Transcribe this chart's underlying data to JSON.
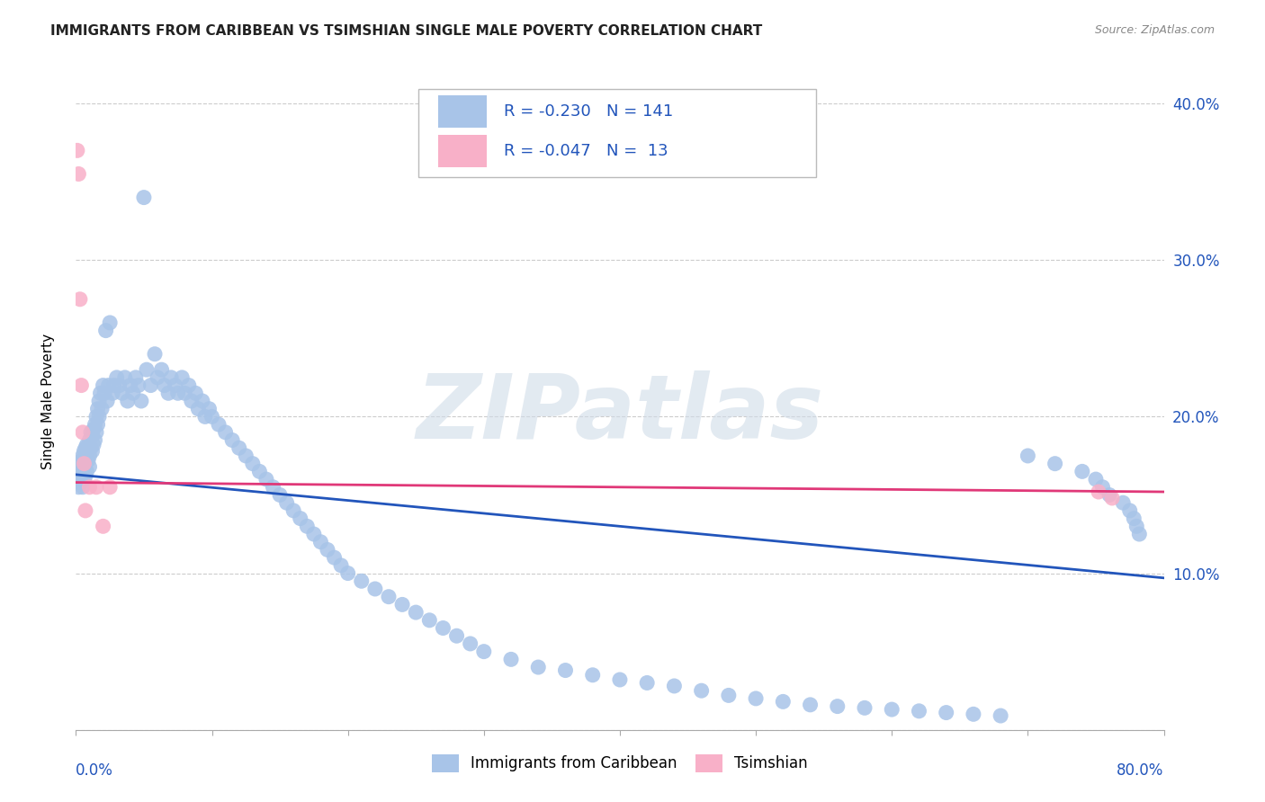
{
  "title": "IMMIGRANTS FROM CARIBBEAN VS TSIMSHIAN SINGLE MALE POVERTY CORRELATION CHART",
  "source": "Source: ZipAtlas.com",
  "ylabel": "Single Male Poverty",
  "blue_R": -0.23,
  "blue_N": 141,
  "pink_R": -0.047,
  "pink_N": 13,
  "blue_color": "#a8c4e8",
  "blue_line_color": "#2255bb",
  "pink_color": "#f8b0c8",
  "pink_line_color": "#e03878",
  "legend_label_blue": "Immigrants from Caribbean",
  "legend_label_pink": "Tsimshian",
  "watermark": "ZIPatlas",
  "xlim": [
    0.0,
    0.8
  ],
  "ylim": [
    0.0,
    0.42
  ],
  "yticks": [
    0.0,
    0.1,
    0.2,
    0.3,
    0.4
  ],
  "ytick_labels": [
    "",
    "10.0%",
    "20.0%",
    "30.0%",
    "40.0%"
  ],
  "blue_x": [
    0.001,
    0.002,
    0.002,
    0.003,
    0.003,
    0.003,
    0.004,
    0.004,
    0.004,
    0.005,
    0.005,
    0.005,
    0.006,
    0.006,
    0.006,
    0.007,
    0.007,
    0.007,
    0.008,
    0.008,
    0.008,
    0.009,
    0.009,
    0.01,
    0.01,
    0.01,
    0.011,
    0.011,
    0.012,
    0.012,
    0.013,
    0.013,
    0.014,
    0.014,
    0.015,
    0.015,
    0.016,
    0.016,
    0.017,
    0.017,
    0.018,
    0.019,
    0.02,
    0.021,
    0.022,
    0.023,
    0.024,
    0.025,
    0.027,
    0.028,
    0.03,
    0.032,
    0.034,
    0.036,
    0.038,
    0.04,
    0.042,
    0.044,
    0.046,
    0.048,
    0.05,
    0.052,
    0.055,
    0.058,
    0.06,
    0.063,
    0.065,
    0.068,
    0.07,
    0.073,
    0.075,
    0.078,
    0.08,
    0.083,
    0.085,
    0.088,
    0.09,
    0.093,
    0.095,
    0.098,
    0.1,
    0.105,
    0.11,
    0.115,
    0.12,
    0.125,
    0.13,
    0.135,
    0.14,
    0.145,
    0.15,
    0.155,
    0.16,
    0.165,
    0.17,
    0.175,
    0.18,
    0.185,
    0.19,
    0.195,
    0.2,
    0.21,
    0.22,
    0.23,
    0.24,
    0.25,
    0.26,
    0.27,
    0.28,
    0.29,
    0.3,
    0.32,
    0.34,
    0.36,
    0.38,
    0.4,
    0.42,
    0.44,
    0.46,
    0.48,
    0.5,
    0.52,
    0.54,
    0.56,
    0.58,
    0.6,
    0.62,
    0.64,
    0.66,
    0.68,
    0.7,
    0.72,
    0.74,
    0.75,
    0.755,
    0.76,
    0.77,
    0.775,
    0.778,
    0.78,
    0.782
  ],
  "blue_y": [
    0.165,
    0.17,
    0.155,
    0.168,
    0.16,
    0.158,
    0.172,
    0.162,
    0.158,
    0.175,
    0.165,
    0.155,
    0.178,
    0.168,
    0.16,
    0.18,
    0.172,
    0.162,
    0.182,
    0.175,
    0.165,
    0.18,
    0.172,
    0.185,
    0.175,
    0.168,
    0.19,
    0.18,
    0.188,
    0.178,
    0.192,
    0.182,
    0.195,
    0.185,
    0.2,
    0.19,
    0.205,
    0.195,
    0.21,
    0.2,
    0.215,
    0.205,
    0.22,
    0.215,
    0.255,
    0.21,
    0.22,
    0.26,
    0.215,
    0.22,
    0.225,
    0.22,
    0.215,
    0.225,
    0.21,
    0.22,
    0.215,
    0.225,
    0.22,
    0.21,
    0.34,
    0.23,
    0.22,
    0.24,
    0.225,
    0.23,
    0.22,
    0.215,
    0.225,
    0.22,
    0.215,
    0.225,
    0.215,
    0.22,
    0.21,
    0.215,
    0.205,
    0.21,
    0.2,
    0.205,
    0.2,
    0.195,
    0.19,
    0.185,
    0.18,
    0.175,
    0.17,
    0.165,
    0.16,
    0.155,
    0.15,
    0.145,
    0.14,
    0.135,
    0.13,
    0.125,
    0.12,
    0.115,
    0.11,
    0.105,
    0.1,
    0.095,
    0.09,
    0.085,
    0.08,
    0.075,
    0.07,
    0.065,
    0.06,
    0.055,
    0.05,
    0.045,
    0.04,
    0.038,
    0.035,
    0.032,
    0.03,
    0.028,
    0.025,
    0.022,
    0.02,
    0.018,
    0.016,
    0.015,
    0.014,
    0.013,
    0.012,
    0.011,
    0.01,
    0.009,
    0.175,
    0.17,
    0.165,
    0.16,
    0.155,
    0.15,
    0.145,
    0.14,
    0.135,
    0.13,
    0.125
  ],
  "pink_x": [
    0.001,
    0.002,
    0.003,
    0.004,
    0.005,
    0.006,
    0.007,
    0.01,
    0.015,
    0.02,
    0.025,
    0.752,
    0.762
  ],
  "pink_y": [
    0.37,
    0.355,
    0.275,
    0.22,
    0.19,
    0.17,
    0.14,
    0.155,
    0.155,
    0.13,
    0.155,
    0.152,
    0.148
  ],
  "blue_trendline_x0": 0.0,
  "blue_trendline_y0": 0.163,
  "blue_trendline_x1": 0.8,
  "blue_trendline_y1": 0.097,
  "pink_trendline_x0": 0.0,
  "pink_trendline_y0": 0.158,
  "pink_trendline_x1": 0.8,
  "pink_trendline_y1": 0.152
}
